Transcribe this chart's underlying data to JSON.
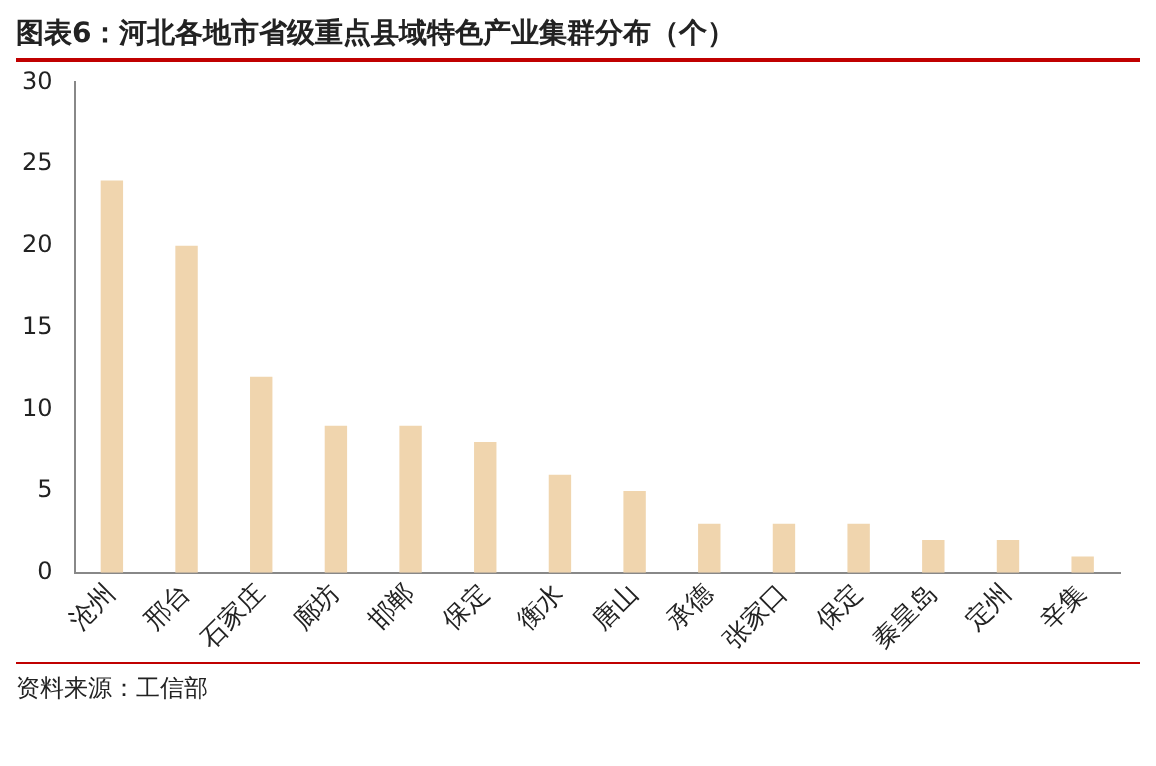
{
  "chart_data": {
    "type": "bar",
    "title": "图表6：河北各地市省级重点县域特色产业集群分布（个）",
    "categories": [
      "沧州",
      "邢台",
      "石家庄",
      "廊坊",
      "邯郸",
      "保定",
      "衡水",
      "唐山",
      "承德",
      "张家口",
      "保定",
      "秦皇岛",
      "定州",
      "辛集"
    ],
    "values": [
      24,
      20,
      12,
      9,
      9,
      8,
      6,
      5,
      3,
      3,
      3,
      2,
      2,
      1
    ],
    "color": "#f0d5ae",
    "ylim": [
      0,
      30
    ],
    "yticks": [
      0,
      5,
      10,
      15,
      20,
      25,
      30
    ],
    "grid": false,
    "annotations": [
      "资料来源：工信部"
    ]
  }
}
